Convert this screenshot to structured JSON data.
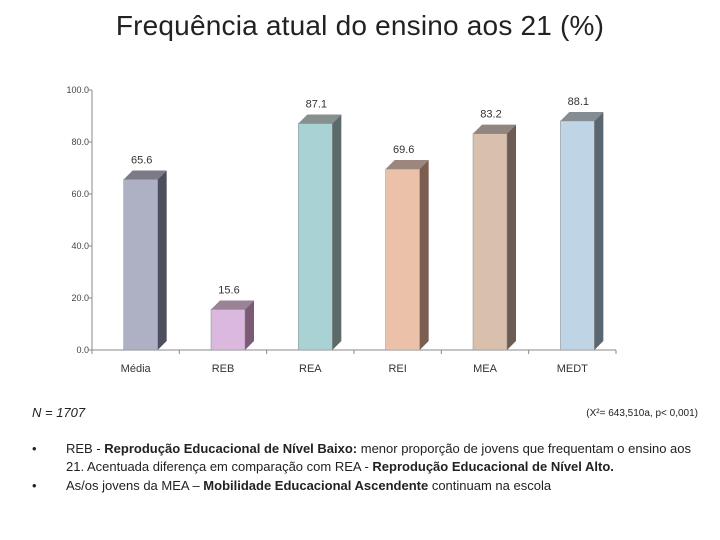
{
  "title": "Frequência atual do ensino aos 21 (%)",
  "footer": {
    "n": "N = 1707",
    "stat": "(X²= 643,510a, p< 0,001)"
  },
  "notes": [
    {
      "bullet": "•",
      "lead": "REB - ",
      "bold": "Reprodução Educacional de Nível Baixo:",
      "rest": " menor proporção de jovens que frequentam o ensino aos 21. Acentuada diferença em comparação com REA - ",
      "bold2": "Reprodução Educacional de Nível Alto."
    },
    {
      "bullet": "•",
      "lead": "As/os jovens da MEA – ",
      "bold": "Mobilidade Educacional Ascendente",
      "rest": " continuam na escola"
    }
  ],
  "chart_data": {
    "type": "bar",
    "categories": [
      "Média",
      "REB",
      "REA",
      "REI",
      "MEA",
      "MEDT"
    ],
    "values": [
      65.6,
      15.6,
      87.1,
      69.6,
      83.2,
      88.1
    ],
    "value_labels": [
      "65.6",
      "15.6",
      "87.1",
      "69.6",
      "83.2",
      "88.1"
    ],
    "ylim": [
      0,
      100
    ],
    "yticks": [
      0,
      20,
      40,
      60,
      80,
      100
    ],
    "ytick_labels": [
      "0.0",
      "20.0",
      "40.0",
      "60.0",
      "80.0",
      "100.0"
    ],
    "grid": false,
    "colors": [
      "#aeb0c3",
      "#dbb8dd",
      "#a9d2d4",
      "#ecc1a9",
      "#d9c0ad",
      "#bfd5e5"
    ],
    "side_colors": [
      "#4e4f5e",
      "#7a5a74",
      "#5c6b6a",
      "#7b5e52",
      "#6d5c54",
      "#5b6770"
    ]
  }
}
